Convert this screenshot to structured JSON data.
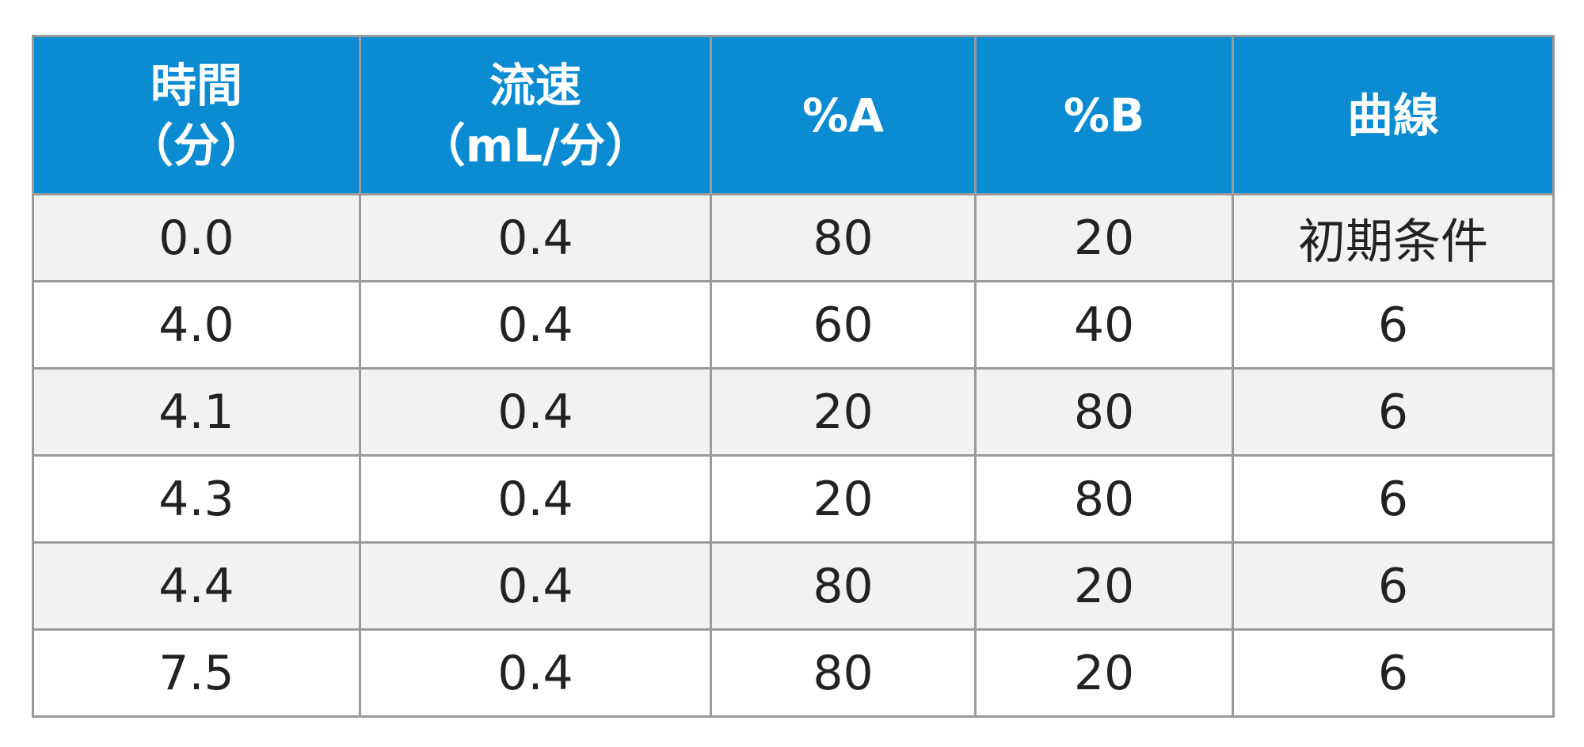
{
  "table": {
    "headers": [
      {
        "line1": "時間",
        "line2": "（分）"
      },
      {
        "line1": "流速",
        "line2": "（mL/分）"
      },
      {
        "line1": "%A",
        "line2": ""
      },
      {
        "line1": "%B",
        "line2": ""
      },
      {
        "line1": "曲線",
        "line2": ""
      }
    ],
    "rows": [
      [
        "0.0",
        "0.4",
        "80",
        "20",
        "初期条件"
      ],
      [
        "4.0",
        "0.4",
        "60",
        "40",
        "6"
      ],
      [
        "4.1",
        "0.4",
        "20",
        "80",
        "6"
      ],
      [
        "4.3",
        "0.4",
        "20",
        "80",
        "6"
      ],
      [
        "4.4",
        "0.4",
        "80",
        "20",
        "6"
      ],
      [
        "7.5",
        "0.4",
        "80",
        "20",
        "6"
      ]
    ]
  },
  "colors": {
    "header_bg": "#0a8bd2",
    "header_text": "#ffffff",
    "border": "#9a9a9a",
    "row_alt_bg": "#f2f2f3"
  }
}
